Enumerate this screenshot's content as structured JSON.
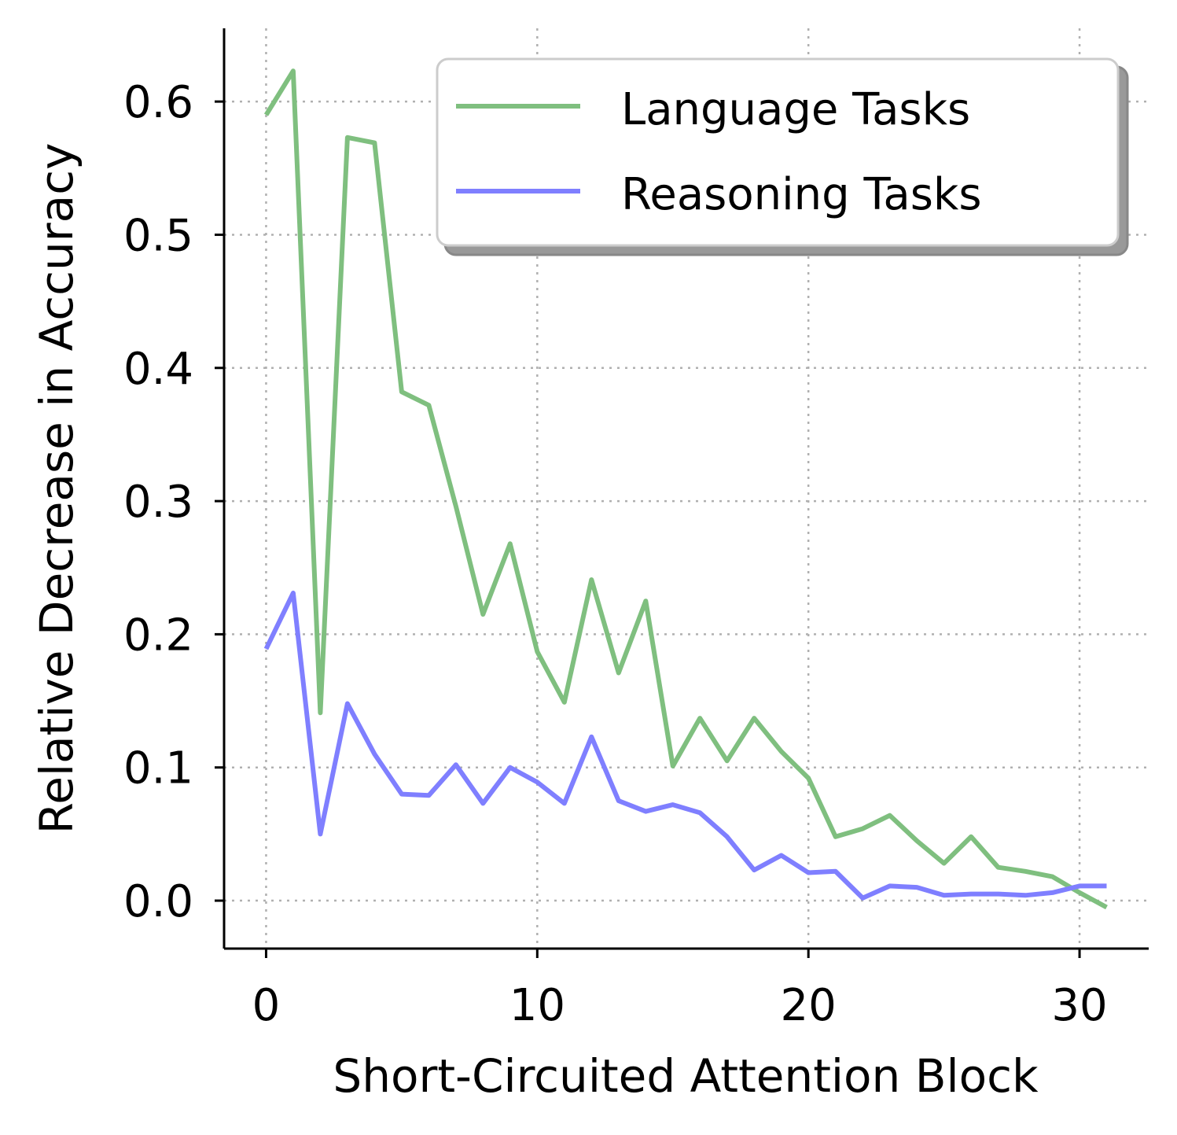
{
  "chart_data": {
    "type": "line",
    "xlabel": "Short-Circuited Attention Block",
    "ylabel": "Relative Decrease in Accuracy",
    "xlim": [
      -1.55,
      32.55
    ],
    "ylim": [
      -0.036,
      0.655
    ],
    "xticks": [
      0,
      10,
      20,
      30
    ],
    "yticks": [
      0.0,
      0.1,
      0.2,
      0.3,
      0.4,
      0.5,
      0.6
    ],
    "xtick_labels": [
      "0",
      "10",
      "20",
      "30"
    ],
    "ytick_labels": [
      "0.0",
      "0.1",
      "0.2",
      "0.3",
      "0.4",
      "0.5",
      "0.6"
    ],
    "grid": true,
    "legend_position": "top-right",
    "x": [
      0,
      1,
      2,
      3,
      4,
      5,
      6,
      7,
      8,
      9,
      10,
      11,
      12,
      13,
      14,
      15,
      16,
      17,
      18,
      19,
      20,
      21,
      22,
      23,
      24,
      25,
      26,
      27,
      28,
      29,
      30,
      31
    ],
    "series": [
      {
        "name": "Language Tasks",
        "color": "#7fbf7f",
        "values": [
          0.59,
          0.623,
          0.141,
          0.573,
          0.569,
          0.382,
          0.372,
          0.296,
          0.215,
          0.268,
          0.187,
          0.149,
          0.241,
          0.171,
          0.225,
          0.101,
          0.137,
          0.105,
          0.137,
          0.112,
          0.092,
          0.048,
          0.054,
          0.064,
          0.045,
          0.028,
          0.048,
          0.025,
          0.022,
          0.018,
          0.006,
          -0.005
        ]
      },
      {
        "name": "Reasoning Tasks",
        "color": "#7f7fff",
        "values": [
          0.189,
          0.231,
          0.05,
          0.148,
          0.11,
          0.08,
          0.079,
          0.102,
          0.073,
          0.1,
          0.089,
          0.073,
          0.123,
          0.075,
          0.067,
          0.072,
          0.066,
          0.048,
          0.023,
          0.034,
          0.021,
          0.022,
          0.002,
          0.011,
          0.01,
          0.004,
          0.005,
          0.005,
          0.004,
          0.006,
          0.011,
          0.011
        ]
      }
    ]
  }
}
